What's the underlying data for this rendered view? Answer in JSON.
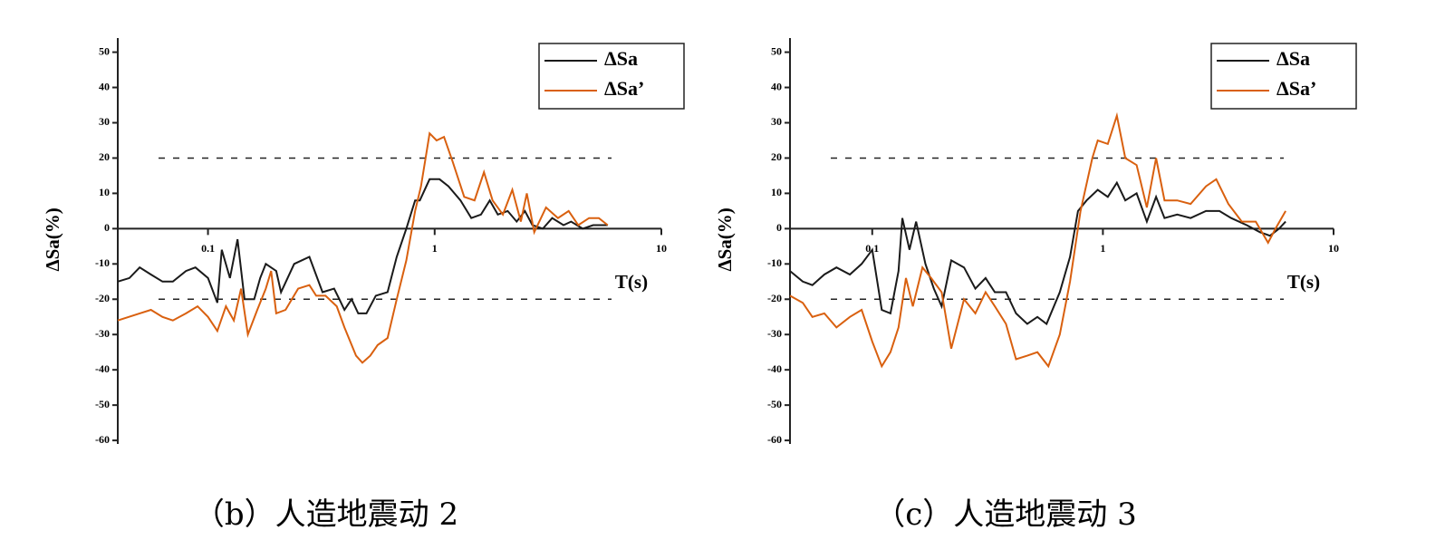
{
  "chart_data": [
    {
      "type": "line",
      "caption": "（b）人造地震动 2",
      "xlabel": "T(s)",
      "ylabel": "ΔSa(%)",
      "xscale": "log",
      "xlim": [
        0.04,
        10
      ],
      "xticks": [
        0.1,
        1,
        10
      ],
      "ylim": [
        -61,
        54
      ],
      "yticks": [
        -60,
        -50,
        -40,
        -30,
        -20,
        -10,
        0,
        10,
        20,
        30,
        40,
        50
      ],
      "hlines": [
        20,
        -20
      ],
      "legend": "upper right",
      "series": [
        {
          "name": "ΔSa",
          "color": "#1a1a1a",
          "x": [
            0.04,
            0.045,
            0.05,
            0.056,
            0.063,
            0.07,
            0.08,
            0.088,
            0.1,
            0.11,
            0.115,
            0.125,
            0.135,
            0.145,
            0.16,
            0.17,
            0.18,
            0.2,
            0.21,
            0.24,
            0.28,
            0.32,
            0.36,
            0.38,
            0.4,
            0.43,
            0.46,
            0.5,
            0.55,
            0.62,
            0.68,
            0.75,
            0.82,
            0.86,
            0.95,
            1.05,
            1.15,
            1.3,
            1.45,
            1.6,
            1.75,
            1.9,
            2.1,
            2.3,
            2.5,
            2.7,
            3.0,
            3.3,
            3.7,
            4.0,
            4.5,
            5.0,
            5.8
          ],
          "values": [
            -15,
            -14,
            -11,
            -13,
            -15,
            -15,
            -12,
            -11,
            -14,
            -21,
            -6,
            -14,
            -3,
            -20,
            -20,
            -14,
            -10,
            -12,
            -18,
            -10,
            -8,
            -18,
            -17,
            -20,
            -23,
            -20,
            -24,
            -24,
            -19,
            -18,
            -8,
            0,
            8,
            8,
            14,
            14,
            12,
            8,
            3,
            4,
            8,
            4,
            5,
            2,
            5,
            1,
            0,
            3,
            1,
            2,
            0,
            1,
            1
          ]
        },
        {
          "name": "ΔSa’",
          "color": "#d9600f",
          "x": [
            0.04,
            0.05,
            0.056,
            0.063,
            0.07,
            0.08,
            0.09,
            0.1,
            0.11,
            0.12,
            0.13,
            0.14,
            0.15,
            0.165,
            0.18,
            0.19,
            0.2,
            0.22,
            0.25,
            0.28,
            0.3,
            0.33,
            0.37,
            0.4,
            0.45,
            0.48,
            0.52,
            0.56,
            0.62,
            0.68,
            0.75,
            0.82,
            0.87,
            0.95,
            1.02,
            1.1,
            1.2,
            1.35,
            1.5,
            1.65,
            1.8,
            2.0,
            2.2,
            2.4,
            2.55,
            2.75,
            3.1,
            3.5,
            3.9,
            4.3,
            4.8,
            5.3,
            5.8
          ],
          "values": [
            -26,
            -24,
            -23,
            -25,
            -26,
            -24,
            -22,
            -25,
            -29,
            -22,
            -26,
            -17,
            -30,
            -23,
            -17,
            -12,
            -24,
            -23,
            -17,
            -16,
            -19,
            -19,
            -22,
            -28,
            -36,
            -38,
            -36,
            -33,
            -31,
            -20,
            -9,
            5,
            12,
            27,
            25,
            26,
            19,
            9,
            8,
            16,
            8,
            4,
            11,
            2,
            10,
            -1,
            6,
            3,
            5,
            1,
            3,
            3,
            1
          ]
        }
      ]
    },
    {
      "type": "line",
      "caption": "（c）人造地震动 3",
      "xlabel": "T(s)",
      "ylabel": "ΔSa(%)",
      "xscale": "log",
      "xlim": [
        0.044,
        10
      ],
      "xticks": [
        0.1,
        1,
        10
      ],
      "ylim": [
        -61,
        54
      ],
      "yticks": [
        -60,
        -50,
        -40,
        -30,
        -20,
        -10,
        0,
        10,
        20,
        30,
        40,
        50
      ],
      "hlines": [
        20,
        -20
      ],
      "legend": "upper right",
      "series": [
        {
          "name": "ΔSa",
          "color": "#1a1a1a",
          "x": [
            0.044,
            0.05,
            0.055,
            0.062,
            0.07,
            0.08,
            0.09,
            0.1,
            0.11,
            0.12,
            0.13,
            0.135,
            0.145,
            0.155,
            0.17,
            0.185,
            0.2,
            0.22,
            0.25,
            0.28,
            0.31,
            0.34,
            0.38,
            0.42,
            0.47,
            0.52,
            0.57,
            0.65,
            0.72,
            0.78,
            0.85,
            0.95,
            1.05,
            1.15,
            1.25,
            1.4,
            1.55,
            1.7,
            1.85,
            2.1,
            2.4,
            2.8,
            3.2,
            3.6,
            4.2,
            4.8,
            5.3,
            5.8,
            6.2
          ],
          "values": [
            -12,
            -15,
            -16,
            -13,
            -11,
            -13,
            -10,
            -6,
            -23,
            -24,
            -12,
            3,
            -6,
            2,
            -10,
            -17,
            -22,
            -9,
            -11,
            -17,
            -14,
            -18,
            -18,
            -24,
            -27,
            -25,
            -27,
            -18,
            -8,
            5,
            8,
            11,
            9,
            13,
            8,
            10,
            2,
            9,
            3,
            4,
            3,
            5,
            5,
            3,
            1,
            -1,
            -2,
            0,
            2
          ]
        },
        {
          "name": "ΔSa’",
          "color": "#d9600f",
          "x": [
            0.044,
            0.05,
            0.055,
            0.062,
            0.07,
            0.08,
            0.09,
            0.1,
            0.11,
            0.12,
            0.13,
            0.14,
            0.15,
            0.165,
            0.18,
            0.2,
            0.22,
            0.25,
            0.28,
            0.31,
            0.34,
            0.38,
            0.42,
            0.47,
            0.52,
            0.58,
            0.65,
            0.72,
            0.8,
            0.9,
            0.95,
            1.05,
            1.15,
            1.25,
            1.4,
            1.55,
            1.7,
            1.85,
            2.1,
            2.4,
            2.8,
            3.1,
            3.5,
            4.0,
            4.6,
            5.2,
            5.6,
            6.2
          ],
          "values": [
            -19,
            -21,
            -25,
            -24,
            -28,
            -25,
            -23,
            -32,
            -39,
            -35,
            -28,
            -14,
            -22,
            -11,
            -14,
            -18,
            -34,
            -20,
            -24,
            -18,
            -22,
            -27,
            -37,
            -36,
            -35,
            -39,
            -30,
            -15,
            5,
            20,
            25,
            24,
            32,
            20,
            18,
            6,
            20,
            8,
            8,
            7,
            12,
            14,
            7,
            2,
            2,
            -4,
            0,
            5
          ]
        }
      ]
    }
  ]
}
